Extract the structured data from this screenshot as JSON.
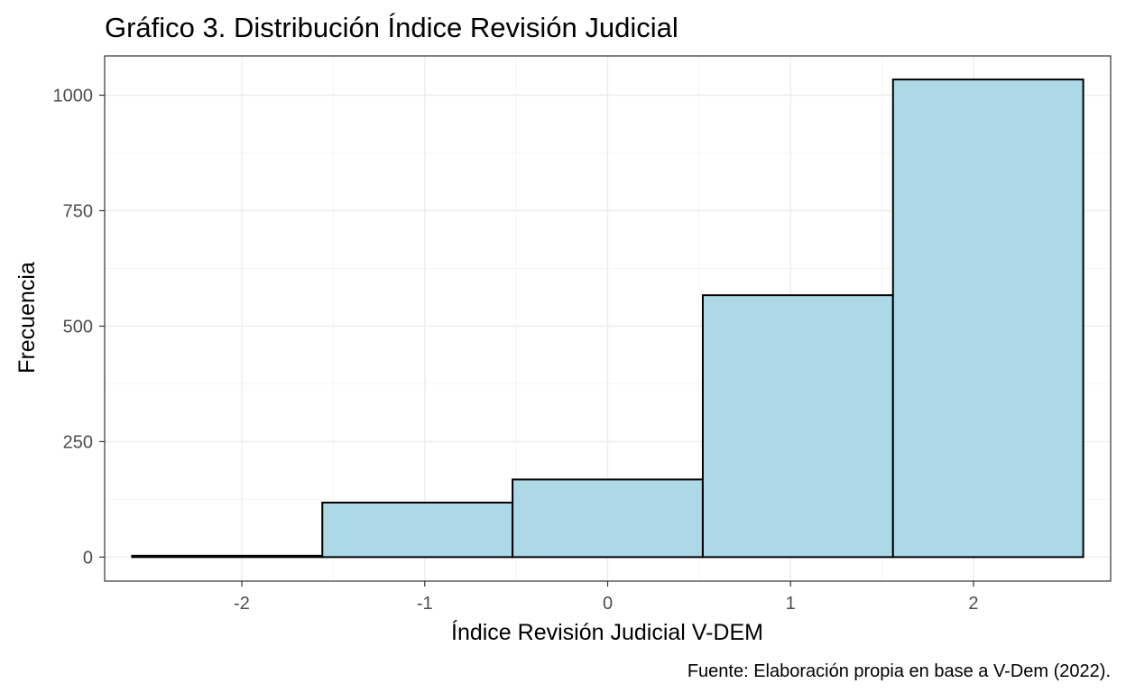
{
  "chart_data": {
    "type": "bar",
    "title": "Gráfico 3. Distribución Índice Revisión Judicial",
    "xlabel": "Índice Revisión Judicial V-DEM",
    "ylabel": "Frecuencia",
    "caption": "Fuente: Elaboración propia en base a V-Dem (2022).",
    "xlim": [
      -2.75,
      2.75
    ],
    "ylim": [
      -52,
      1085
    ],
    "x_ticks": [
      -2,
      -1,
      0,
      1,
      2
    ],
    "x_tick_labels": [
      "-2",
      "-1",
      "0",
      "1",
      "2"
    ],
    "y_ticks": [
      0,
      250,
      500,
      750,
      1000
    ],
    "y_tick_labels": [
      "0",
      "250",
      "500",
      "750",
      "1000"
    ],
    "bins": [
      {
        "x0": -2.6,
        "x1": -1.56,
        "count": 3
      },
      {
        "x0": -1.56,
        "x1": -0.52,
        "count": 118
      },
      {
        "x0": -0.52,
        "x1": 0.52,
        "count": 168
      },
      {
        "x0": 0.52,
        "x1": 1.56,
        "count": 567
      },
      {
        "x0": 1.56,
        "x1": 2.6,
        "count": 1034
      }
    ],
    "grid": true,
    "bar_fill": "#add8e6",
    "bar_stroke": "#000000",
    "panel_border": "#333333",
    "grid_major_color": "#ebebeb",
    "grid_minor_color": "#f5f5f5"
  }
}
